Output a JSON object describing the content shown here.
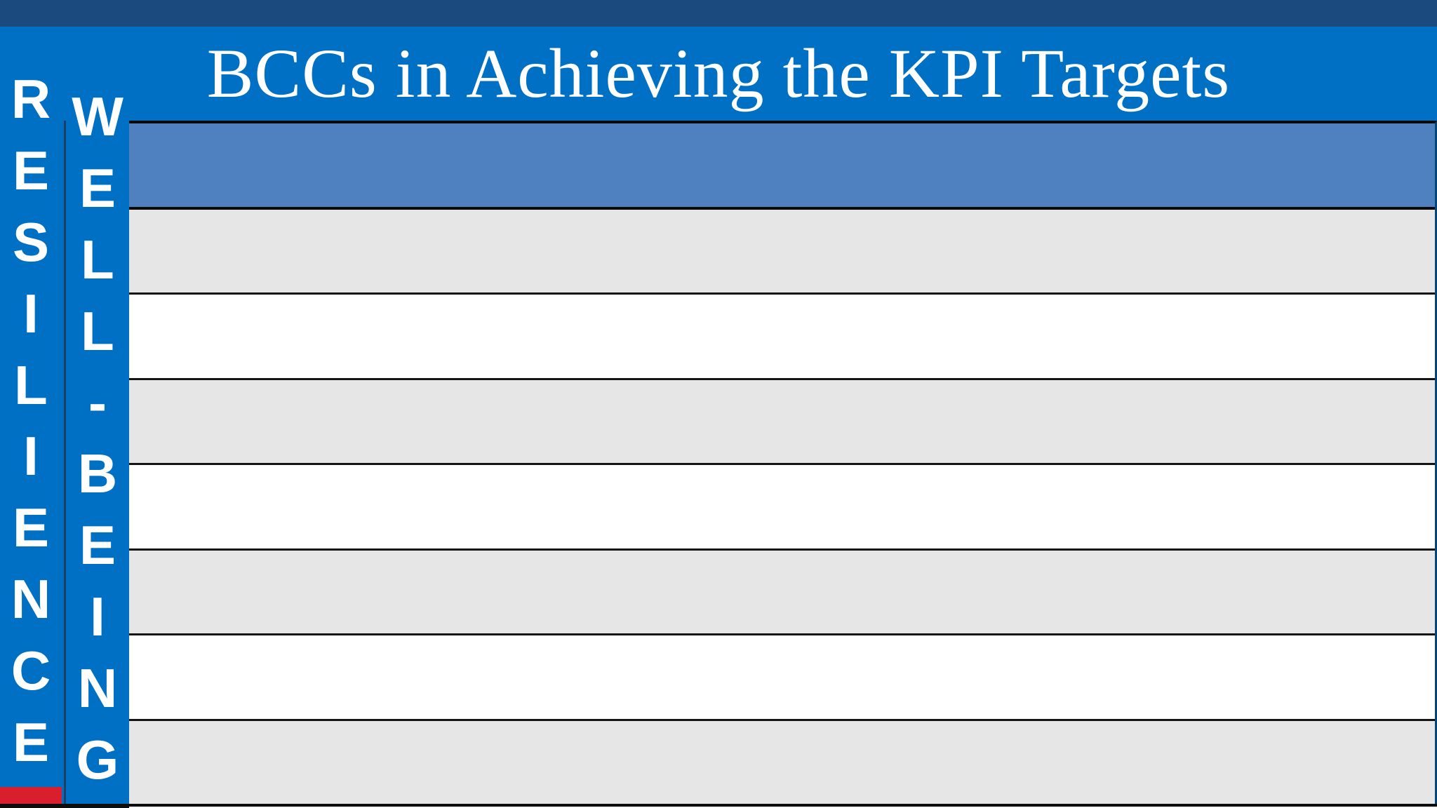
{
  "slide": {
    "title": "BCCs in Achieving the KPI Targets",
    "side_labels": [
      {
        "id": "resilience",
        "text": "RESILIENCE",
        "letters": [
          "R",
          "E",
          "S",
          "I",
          "L",
          "I",
          "E",
          "N",
          "C",
          "E"
        ]
      },
      {
        "id": "wellbeing",
        "text": "WELL-BEING",
        "letters": [
          "W",
          "E",
          "L",
          "L",
          "-",
          "B",
          "E",
          "I",
          "N",
          "G"
        ]
      }
    ],
    "table": {
      "header_row": {
        "content": "",
        "fill": "#4f80c0"
      },
      "rows": [
        {
          "index": 1,
          "shade": "gray",
          "content": ""
        },
        {
          "index": 2,
          "shade": "white",
          "content": ""
        },
        {
          "index": 3,
          "shade": "gray",
          "content": ""
        },
        {
          "index": 4,
          "shade": "white",
          "content": ""
        },
        {
          "index": 5,
          "shade": "gray",
          "content": ""
        },
        {
          "index": 6,
          "shade": "white",
          "content": ""
        },
        {
          "index": 7,
          "shade": "gray",
          "content": ""
        }
      ]
    },
    "colors": {
      "background_blue": "#0070c4",
      "top_bar_navy": "#1b4b7e",
      "header_row_steel_blue": "#4f80c0",
      "row_gray": "#e6e6e6",
      "row_white": "#ffffff",
      "separator_black": "#0a0a0a",
      "strip_divider_navy": "#1d3f66",
      "red_accent": "#d91e2e",
      "title_text": "#ffffff"
    }
  }
}
